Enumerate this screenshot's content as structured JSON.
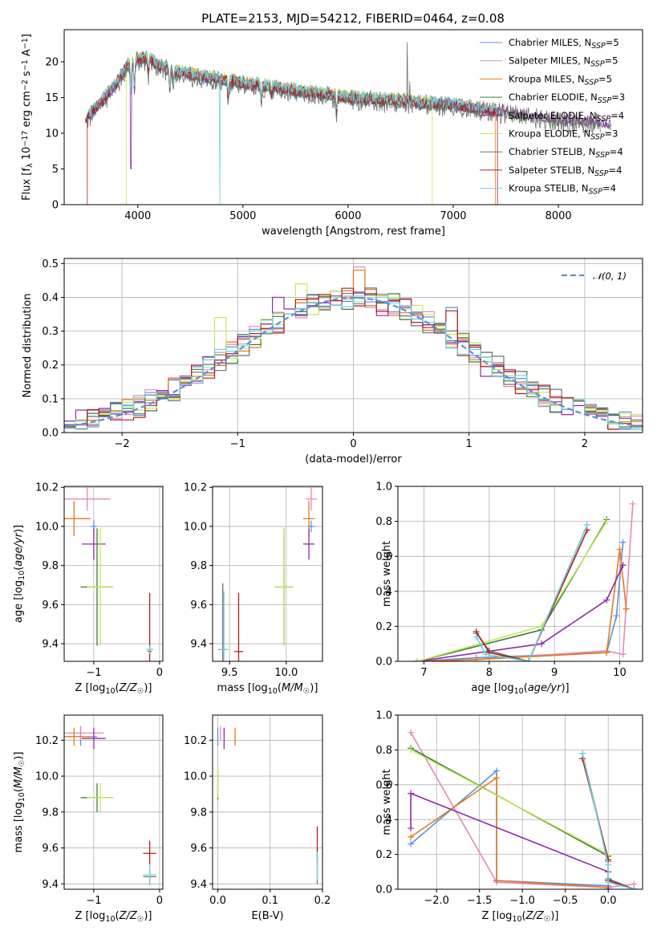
{
  "figure_title": "PLATE=2153, MJD=54212, FIBERID=0464, z=0.08",
  "colors": {
    "chabrier_miles": "#5b8fde",
    "salpeter_miles": "#e389b9",
    "kroupa_miles": "#e07b1f",
    "chabrier_elodie": "#3c7a3c",
    "salpeter_elodie": "#8e2ba6",
    "kroupa_elodie": "#c5e85a",
    "chabrier_stelib": "#707070",
    "salpeter_stelib": "#b0201a",
    "kroupa_stelib": "#6fd3e3",
    "gaussian": "#5b8fde"
  },
  "series_labels": {
    "chabrier_miles": "Chabrier MILES, N_SSP=5",
    "salpeter_miles": "Salpeter MILES, N_SSP=5",
    "kroupa_miles": "Kroupa MILES, N_SSP=5",
    "chabrier_elodie": "Chabrier ELODIE, N_SSP=3",
    "salpeter_elodie": "Salpeter ELODIE, N_SSP=4",
    "kroupa_elodie": "Kroupa ELODIE, N_SSP=3",
    "chabrier_stelib": "Chabrier STELIB, N_SSP=4",
    "salpeter_stelib": "Salpeter STELIB, N_SSP=4",
    "kroupa_stelib": "Kroupa STELIB, N_SSP=4"
  },
  "chart_data": [
    {
      "id": "spectrum",
      "type": "line",
      "xlabel": "wavelength [Angstrom, rest frame]",
      "ylabel": "Flux [f_λ 10^-17 erg cm^-2 s^-1 A^-1]",
      "xlim": [
        3300,
        8800
      ],
      "ylim": [
        0,
        24.5
      ],
      "xticks": [
        4000,
        5000,
        6000,
        7000,
        8000
      ],
      "yticks": [
        0,
        5,
        10,
        15,
        20
      ],
      "grid": false,
      "legend": "upper right",
      "continuum": {
        "x": [
          3500,
          3600,
          3800,
          3900,
          4000,
          4100,
          4200,
          4400,
          4600,
          4800,
          5000,
          5200,
          5500,
          6000,
          6500,
          7000,
          7500,
          8000,
          8500
        ],
        "y": [
          12,
          13.5,
          17,
          19.5,
          20.5,
          20.5,
          19.5,
          18.5,
          18,
          17.5,
          17,
          16.7,
          16,
          15,
          14.5,
          14,
          13,
          12,
          11.5
        ]
      },
      "absorption_features": [
        {
          "x": 3934,
          "depth": 4
        },
        {
          "x": 3968,
          "depth": 4
        },
        {
          "x": 4101,
          "depth": 2
        },
        {
          "x": 4304,
          "depth": 3
        },
        {
          "x": 4340,
          "depth": 2
        },
        {
          "x": 4861,
          "depth": 2
        },
        {
          "x": 5175,
          "depth": 2
        },
        {
          "x": 5270,
          "depth": 1
        },
        {
          "x": 5890,
          "depth": 2.5
        }
      ],
      "emission_features": [
        {
          "x": 6563,
          "height": 8
        },
        {
          "x": 6584,
          "height": 4
        }
      ],
      "dropouts": [
        {
          "series": "salpeter_stelib",
          "from": 3300,
          "to": 3520
        },
        {
          "series": "salpeter_stelib",
          "from": 7420,
          "to": 8800
        },
        {
          "series": "kroupa_elodie",
          "from": 3300,
          "to": 3890
        },
        {
          "series": "kroupa_elodie",
          "from": 6800,
          "to": 8800
        },
        {
          "series": "kroupa_stelib",
          "at": 4780
        }
      ]
    },
    {
      "id": "residuals",
      "type": "histogram",
      "xlabel": "(data-model)/error",
      "ylabel": "Normed distribution",
      "xlim": [
        -2.5,
        2.5
      ],
      "ylim": [
        0,
        0.515
      ],
      "xticks": [
        -2,
        -1,
        0,
        1,
        2
      ],
      "yticks": [
        0.0,
        0.1,
        0.2,
        0.3,
        0.4,
        0.5
      ],
      "grid": true,
      "bin_width": 0.1,
      "reference_curve": {
        "label": "𝒩(0, 1)",
        "type": "gaussian",
        "mean": 0,
        "sigma": 1
      },
      "spiky_bins": [
        {
          "series": "kroupa_elodie",
          "x": -1.15,
          "y": 0.34
        },
        {
          "series": "kroupa_elodie",
          "x": -0.45,
          "y": 0.44
        },
        {
          "series": "salpeter_elodie",
          "x": -0.65,
          "y": 0.4
        },
        {
          "series": "salpeter_miles",
          "x": 0.05,
          "y": 0.49
        },
        {
          "series": "kroupa_miles",
          "x": 0.05,
          "y": 0.48
        },
        {
          "series": "chabrier_miles",
          "x": 0.85,
          "y": 0.37
        },
        {
          "series": "salpeter_stelib",
          "x": 0.85,
          "y": 0.36
        }
      ]
    },
    {
      "id": "age_vs_Z",
      "type": "errorbar",
      "xlabel": "Z [log10(Z/Z☉)]",
      "ylabel": "age  [log10(age/yr)]",
      "xlim": [
        -1.45,
        0.05
      ],
      "ylim": [
        9.31,
        10.205
      ],
      "xticks": [
        -1,
        0
      ],
      "yticks": [
        9.4,
        9.6,
        9.8,
        10.0,
        10.2
      ],
      "grid": true,
      "points": [
        {
          "series": "chabrier_miles",
          "x": -1.0,
          "y": 10.0,
          "xerr": 0.05,
          "yerr": 0.03
        },
        {
          "series": "salpeter_miles",
          "x": -1.1,
          "y": 10.14,
          "xerr": 0.35,
          "yerr": 0.06
        },
        {
          "series": "kroupa_miles",
          "x": -1.3,
          "y": 10.04,
          "xerr": 0.25,
          "yerr": 0.09
        },
        {
          "series": "chabrier_elodie",
          "x": -0.95,
          "y": 9.69,
          "xerr": 0.25,
          "yerr": 0.3
        },
        {
          "series": "salpeter_elodie",
          "x": -1.0,
          "y": 9.91,
          "xerr": 0.18,
          "yerr": 0.08
        },
        {
          "series": "kroupa_elodie",
          "x": -0.9,
          "y": 9.69,
          "xerr": 0.2,
          "yerr": 0.3
        },
        {
          "series": "chabrier_stelib",
          "x": -0.15,
          "y": 9.37,
          "xerr": 0.05,
          "yerr": 0.02
        },
        {
          "series": "salpeter_stelib",
          "x": -0.15,
          "y": 9.36,
          "xerr": 0.03,
          "yerr": 0.3
        },
        {
          "series": "kroupa_stelib",
          "x": -0.15,
          "y": 9.37,
          "xerr": 0.05,
          "yerr": 0.02
        }
      ]
    },
    {
      "id": "age_vs_mass",
      "type": "errorbar",
      "xlabel": "mass [log10(M/M☉)]",
      "ylabel": "",
      "xlim": [
        9.35,
        10.32
      ],
      "ylim": [
        9.31,
        10.205
      ],
      "xticks": [
        9.5,
        10.0
      ],
      "yticks": [
        9.4,
        9.6,
        9.8,
        10.0,
        10.2
      ],
      "grid": true,
      "points": [
        {
          "series": "chabrier_miles",
          "x": 10.22,
          "y": 10.0,
          "xerr": 0.03,
          "yerr": 0.03
        },
        {
          "series": "salpeter_miles",
          "x": 10.22,
          "y": 10.14,
          "xerr": 0.05,
          "yerr": 0.06
        },
        {
          "series": "kroupa_miles",
          "x": 10.2,
          "y": 10.04,
          "xerr": 0.05,
          "yerr": 0.09
        },
        {
          "series": "chabrier_elodie",
          "x": 9.98,
          "y": 9.69,
          "xerr": 0.08,
          "yerr": 0.3
        },
        {
          "series": "salpeter_elodie",
          "x": 10.2,
          "y": 9.91,
          "xerr": 0.05,
          "yerr": 0.08
        },
        {
          "series": "kroupa_elodie",
          "x": 9.98,
          "y": 9.69,
          "xerr": 0.08,
          "yerr": 0.3
        },
        {
          "series": "chabrier_stelib",
          "x": 9.44,
          "y": 9.37,
          "xerr": 0.04,
          "yerr": 0.34
        },
        {
          "series": "salpeter_stelib",
          "x": 9.58,
          "y": 9.36,
          "xerr": 0.04,
          "yerr": 0.3
        },
        {
          "series": "kroupa_stelib",
          "x": 9.45,
          "y": 9.37,
          "xerr": 0.04,
          "yerr": 0.3
        }
      ]
    },
    {
      "id": "weight_vs_age",
      "type": "line",
      "xlabel": "age  [log10(age/yr)]",
      "ylabel": "mass weight",
      "xlim": [
        6.6,
        10.35
      ],
      "ylim": [
        0,
        1.0
      ],
      "xticks": [
        7,
        8,
        9,
        10
      ],
      "yticks": [
        0.0,
        0.2,
        0.4,
        0.6,
        0.8,
        1.0
      ],
      "grid": true,
      "series": [
        {
          "key": "chabrier_miles",
          "x": [
            6.9,
            7.8,
            9.8,
            9.95,
            10.05
          ],
          "y": [
            0.0,
            0.02,
            0.05,
            0.26,
            0.68
          ]
        },
        {
          "key": "salpeter_miles",
          "x": [
            6.9,
            7.8,
            9.8,
            10.05,
            10.2
          ],
          "y": [
            0.0,
            0.01,
            0.06,
            0.04,
            0.9
          ]
        },
        {
          "key": "kroupa_miles",
          "x": [
            6.9,
            7.8,
            9.8,
            10.0,
            10.1
          ],
          "y": [
            0.0,
            0.01,
            0.05,
            0.64,
            0.3
          ]
        },
        {
          "key": "chabrier_elodie",
          "x": [
            6.9,
            8.8,
            9.8
          ],
          "y": [
            0.0,
            0.18,
            0.81
          ]
        },
        {
          "key": "salpeter_elodie",
          "x": [
            6.9,
            8.8,
            9.8,
            10.05
          ],
          "y": [
            0.0,
            0.1,
            0.35,
            0.55
          ]
        },
        {
          "key": "kroupa_elodie",
          "x": [
            6.9,
            8.8,
            9.8
          ],
          "y": [
            0.0,
            0.2,
            0.8
          ]
        },
        {
          "key": "chabrier_stelib",
          "x": [
            7.8,
            8.0,
            8.6,
            9.5
          ],
          "y": [
            0.16,
            0.06,
            0.0,
            0.78
          ]
        },
        {
          "key": "salpeter_stelib",
          "x": [
            7.8,
            8.0,
            8.6,
            9.5
          ],
          "y": [
            0.17,
            0.05,
            0.0,
            0.75
          ]
        },
        {
          "key": "kroupa_stelib",
          "x": [
            7.8,
            7.95,
            8.6,
            9.5
          ],
          "y": [
            0.14,
            0.04,
            0.0,
            0.78
          ]
        }
      ]
    },
    {
      "id": "mass_vs_Z",
      "type": "errorbar",
      "xlabel": "Z [log10(Z/Z☉)]",
      "ylabel": "mass [log10(M/M☉)]",
      "xlim": [
        -1.45,
        0.05
      ],
      "ylim": [
        9.37,
        10.34
      ],
      "xticks": [
        -1,
        0
      ],
      "yticks": [
        9.4,
        9.6,
        9.8,
        10.0,
        10.2
      ],
      "grid": true,
      "points": [
        {
          "series": "chabrier_miles",
          "x": -1.2,
          "y": 10.22,
          "xerr": 0.25,
          "yerr": 0.05
        },
        {
          "series": "salpeter_miles",
          "x": -1.2,
          "y": 10.24,
          "xerr": 0.35,
          "yerr": 0.04
        },
        {
          "series": "kroupa_miles",
          "x": -1.3,
          "y": 10.22,
          "xerr": 0.25,
          "yerr": 0.05
        },
        {
          "series": "chabrier_elodie",
          "x": -0.95,
          "y": 9.88,
          "xerr": 0.25,
          "yerr": 0.08
        },
        {
          "series": "salpeter_elodie",
          "x": -1.0,
          "y": 10.21,
          "xerr": 0.18,
          "yerr": 0.06
        },
        {
          "series": "kroupa_elodie",
          "x": -0.9,
          "y": 9.88,
          "xerr": 0.2,
          "yerr": 0.08
        },
        {
          "series": "chabrier_stelib",
          "x": -0.15,
          "y": 9.44,
          "xerr": 0.1,
          "yerr": 0.04
        },
        {
          "series": "salpeter_stelib",
          "x": -0.15,
          "y": 9.57,
          "xerr": 0.1,
          "yerr": 0.07
        },
        {
          "series": "kroupa_stelib",
          "x": -0.15,
          "y": 9.45,
          "xerr": 0.1,
          "yerr": 0.06
        }
      ]
    },
    {
      "id": "mass_vs_ebv",
      "type": "errorbar",
      "xlabel": "E(B-V)",
      "ylabel": "",
      "xlim": [
        -0.01,
        0.2
      ],
      "ylim": [
        9.37,
        10.34
      ],
      "xticks": [
        0.0,
        0.1,
        0.2
      ],
      "yticks": [
        9.4,
        9.6,
        9.8,
        10.0,
        10.2
      ],
      "grid": true,
      "points": [
        {
          "series": "chabrier_miles",
          "x": 0.0,
          "y": 10.22,
          "xerr": 0.0,
          "yerr": 0.05
        },
        {
          "series": "salpeter_miles",
          "x": 0.005,
          "y": 10.24,
          "xerr": 0.0,
          "yerr": 0.04
        },
        {
          "series": "kroupa_miles",
          "x": 0.033,
          "y": 10.22,
          "xerr": 0.0,
          "yerr": 0.05
        },
        {
          "series": "chabrier_elodie",
          "x": 0.0,
          "y": 9.95,
          "xerr": 0.0,
          "yerr": 0.08
        },
        {
          "series": "salpeter_elodie",
          "x": 0.012,
          "y": 10.21,
          "xerr": 0.0,
          "yerr": 0.06
        },
        {
          "series": "kroupa_elodie",
          "x": 0.0,
          "y": 9.96,
          "xerr": 0.0,
          "yerr": 0.08
        },
        {
          "series": "chabrier_stelib",
          "x": 0.19,
          "y": 9.5,
          "xerr": 0.0,
          "yerr": 0.1
        },
        {
          "series": "salpeter_stelib",
          "x": 0.19,
          "y": 9.62,
          "xerr": 0.0,
          "yerr": 0.1
        },
        {
          "series": "kroupa_stelib",
          "x": 0.19,
          "y": 9.5,
          "xerr": 0.0,
          "yerr": 0.08
        }
      ]
    },
    {
      "id": "weight_vs_Z",
      "type": "line",
      "xlabel": "Z [log10(Z/Z☉)]",
      "ylabel": "mass weight",
      "xlim": [
        -2.45,
        0.4
      ],
      "ylim": [
        0,
        1.0
      ],
      "xticks": [
        -2.0,
        -1.5,
        -1.0,
        -0.5,
        0.0
      ],
      "yticks": [
        0.0,
        0.2,
        0.4,
        0.6,
        0.8,
        1.0
      ],
      "grid": true,
      "series": [
        {
          "key": "chabrier_miles",
          "x": [
            -2.3,
            -1.3,
            -1.3,
            0.0,
            0.0
          ],
          "y": [
            0.26,
            0.68,
            0.05,
            0.02,
            0.0
          ]
        },
        {
          "key": "salpeter_miles",
          "x": [
            -2.3,
            -1.3,
            0.0,
            0.3
          ],
          "y": [
            0.9,
            0.04,
            0.01,
            0.03
          ]
        },
        {
          "key": "kroupa_miles",
          "x": [
            -2.3,
            -1.3,
            -1.3,
            0.0
          ],
          "y": [
            0.3,
            0.64,
            0.05,
            0.01
          ]
        },
        {
          "key": "chabrier_elodie",
          "x": [
            -2.3,
            0.0
          ],
          "y": [
            0.81,
            0.19
          ]
        },
        {
          "key": "salpeter_elodie",
          "x": [
            -2.3,
            -2.3,
            0.0,
            0.0
          ],
          "y": [
            0.35,
            0.55,
            0.1,
            0.0
          ]
        },
        {
          "key": "kroupa_elodie",
          "x": [
            -2.3,
            0.0
          ],
          "y": [
            0.8,
            0.2
          ]
        },
        {
          "key": "chabrier_stelib",
          "x": [
            -0.3,
            0.0,
            0.0,
            0.3
          ],
          "y": [
            0.78,
            0.16,
            0.06,
            0.0
          ]
        },
        {
          "key": "salpeter_stelib",
          "x": [
            -0.3,
            0.0,
            0.0,
            0.3
          ],
          "y": [
            0.75,
            0.17,
            0.05,
            0.0
          ]
        },
        {
          "key": "kroupa_stelib",
          "x": [
            -0.3,
            0.0,
            0.0,
            0.3
          ],
          "y": [
            0.78,
            0.14,
            0.04,
            0.0
          ]
        }
      ]
    }
  ]
}
